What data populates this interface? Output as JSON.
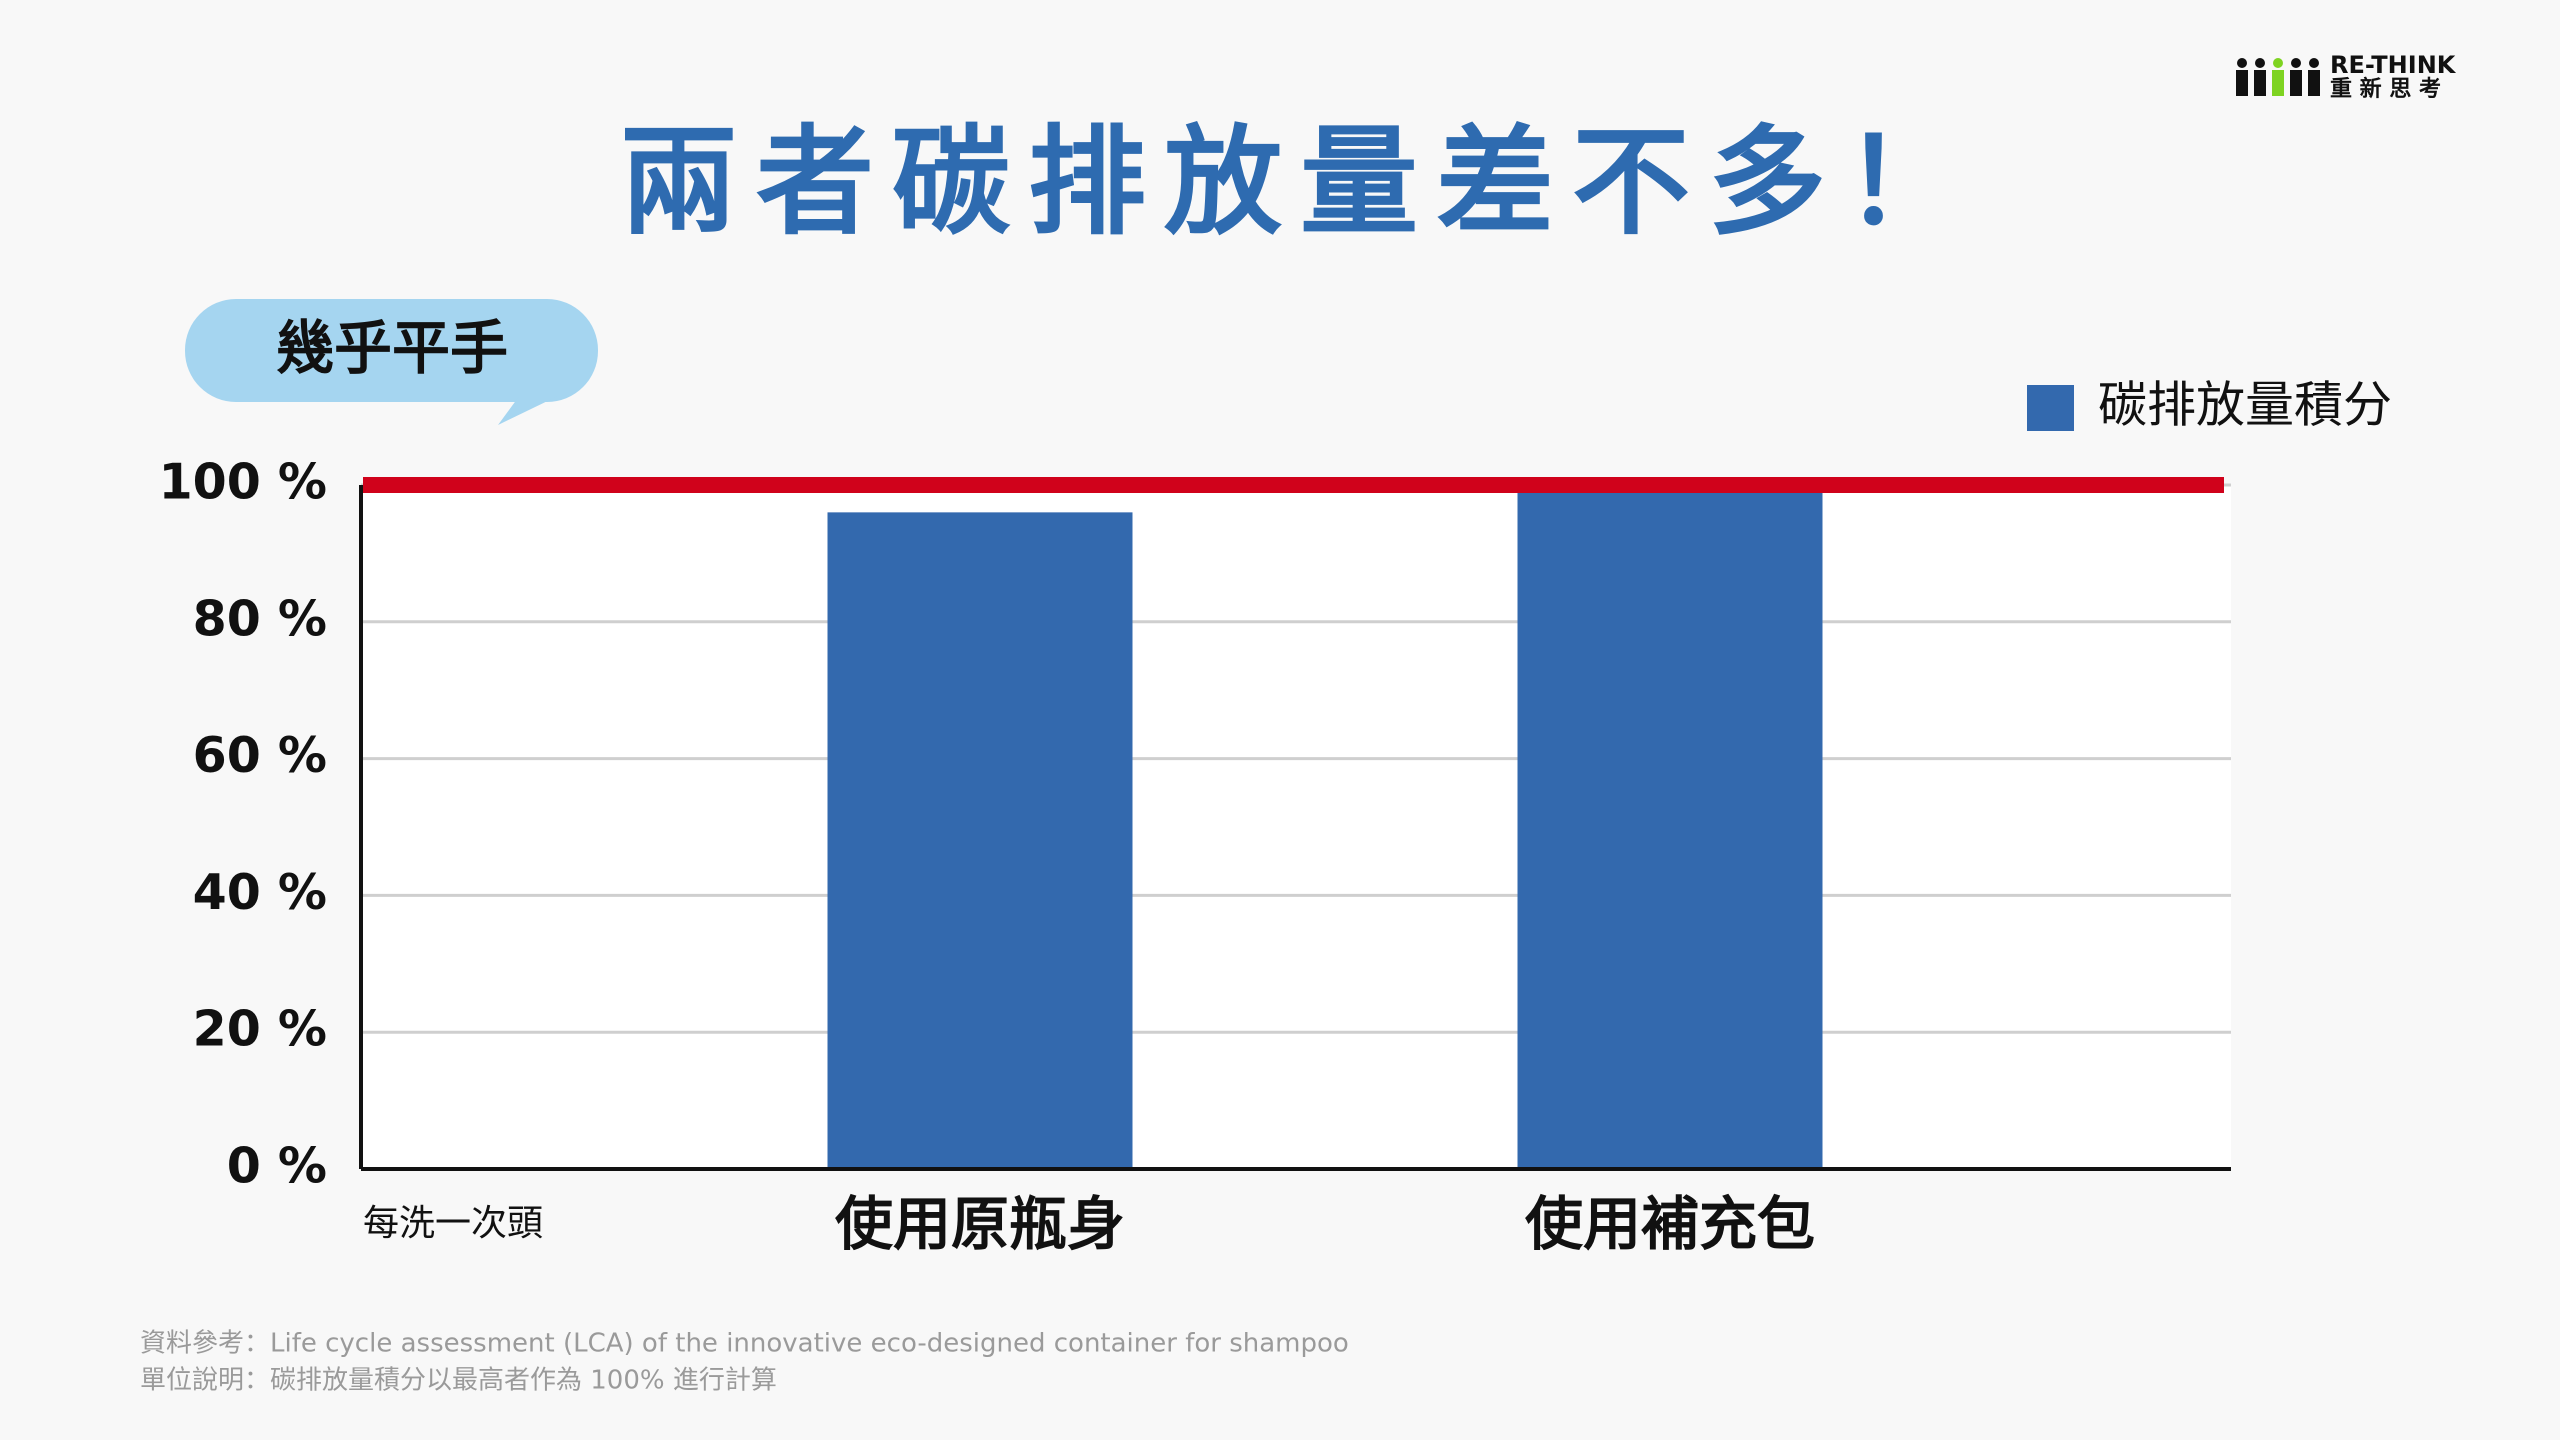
{
  "logo": {
    "name": "RE-THINK",
    "subtitle": "重 新 思 考"
  },
  "chart_data": {
    "type": "bar",
    "title": "兩者碳排放量差不多！",
    "callout": "幾乎平手",
    "x_label": "每洗一次頭",
    "categories": [
      "使用原瓶身",
      "使用補充包"
    ],
    "series": [
      {
        "name": "碳排放量積分",
        "color": "#3369ae",
        "values": [
          96,
          100
        ]
      }
    ],
    "reference_line": {
      "value": 100,
      "color": "#d0021b"
    },
    "ylim": [
      0,
      100
    ],
    "yticks": [
      {
        "value": 0,
        "label": "0 %"
      },
      {
        "value": 20,
        "label": "20 %"
      },
      {
        "value": 40,
        "label": "40 %"
      },
      {
        "value": 60,
        "label": "60 %"
      },
      {
        "value": 80,
        "label": "80 %"
      },
      {
        "value": 100,
        "label": "100 %"
      }
    ],
    "grid": true
  },
  "notes": [
    "資料參考：Life cycle assessment (LCA) of the innovative eco-designed container for shampoo",
    "單位說明：碳排放量積分以最高者作為 100% 進行計算"
  ]
}
